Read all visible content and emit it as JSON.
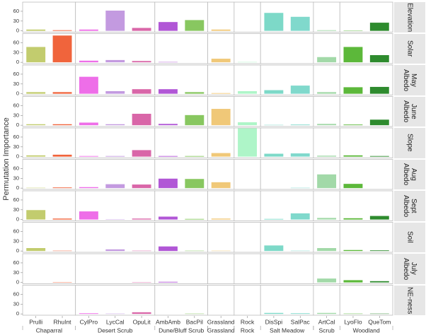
{
  "chart_data": {
    "type": "bar",
    "y_label": "Permutation Importance",
    "categories": [
      "Prulli",
      "RhuInt",
      "CylPro",
      "LycCal",
      "OpuLit",
      "AmbAmb",
      "BacPil",
      "Grassland",
      "Rock",
      "DisSpi",
      "SalPac",
      "ArtCal",
      "LyoFlo",
      "QueTom"
    ],
    "category_groups": [
      "Chaparral",
      "Chaparral",
      "Desert Scrub",
      "Desert Scrub",
      "Desert Scrub",
      "Dune/Bluff Scrub",
      "Dune/Bluff Scrub",
      "Grassland",
      "Rock",
      "Salt Meadow",
      "Salt Meadow",
      "Scrub",
      "Woodland",
      "Woodland"
    ],
    "colors": [
      "#c2cc6e",
      "#f0643c",
      "#ee6ee8",
      "#c39ae0",
      "#d966a8",
      "#b157d6",
      "#88c760",
      "#f0c878",
      "#aef5c8",
      "#7dd9c8",
      "#80d9cc",
      "#a2d9a8",
      "#5cb83a",
      "#2e8b2e"
    ],
    "facets": [
      {
        "name": "Elevation",
        "values": [
          4,
          2,
          4,
          62,
          9,
          27,
          33,
          4,
          0,
          55,
          43,
          2,
          1,
          25
        ]
      },
      {
        "name": "Solar",
        "values": [
          47,
          82,
          5,
          7,
          4,
          1,
          0,
          11,
          1,
          0,
          0,
          16,
          47,
          22
        ]
      },
      {
        "name": "May Albedo",
        "values": [
          5,
          5,
          52,
          8,
          14,
          14,
          5,
          2,
          8,
          11,
          25,
          5,
          20,
          21
        ]
      },
      {
        "name": "June Albedo",
        "values": [
          3,
          3,
          8,
          3,
          35,
          4,
          31,
          50,
          9,
          1,
          2,
          4,
          2,
          17
        ]
      },
      {
        "name": "Slope",
        "values": [
          4,
          6,
          2,
          2,
          20,
          2,
          2,
          11,
          87,
          9,
          10,
          3,
          4,
          2
        ]
      },
      {
        "name": "Aug Albedo",
        "values": [
          1,
          2,
          3,
          12,
          11,
          29,
          28,
          18,
          0,
          0,
          1,
          42,
          13,
          0
        ]
      },
      {
        "name": "Sept Albedo",
        "values": [
          29,
          3,
          25,
          1,
          3,
          9,
          2,
          3,
          0,
          2,
          19,
          5,
          4,
          11
        ]
      },
      {
        "name": "Soil",
        "values": [
          9,
          1,
          0,
          5,
          1,
          14,
          1,
          1,
          0,
          17,
          1,
          9,
          3,
          2
        ]
      },
      {
        "name": "July Albedo",
        "values": [
          0,
          1,
          0,
          0,
          1,
          2,
          0,
          0,
          0,
          0,
          0,
          12,
          7,
          4
        ]
      },
      {
        "name": "NE-ness",
        "values": [
          0,
          0,
          2,
          1,
          5,
          0,
          1,
          0,
          0,
          3,
          2,
          3,
          1,
          1
        ]
      }
    ],
    "ylim": [
      -4,
      88
    ],
    "yticks": [
      0,
      30,
      60
    ],
    "grid": false
  }
}
